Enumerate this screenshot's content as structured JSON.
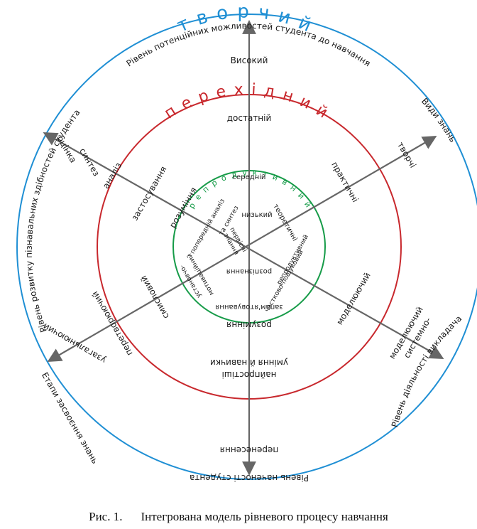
{
  "outer_ring": {
    "top_label": "Рівень потенційних можливостей студента до навчання",
    "left_label": "Рівень розвитку пізнавальних здібностей студента",
    "right_top_label": "Види знань",
    "right_bottom_label": "Рівень діяльності викладача",
    "bottom_label": "Рівень наченості студента",
    "bottom_left_label": "Етапи засвоєння знань"
  },
  "levels": {
    "creative": "т в о р ч и й",
    "transitional": "п е р е х і д н и й",
    "reproductive": "р е п р о д у к т и в н и й"
  },
  "vertical_axis": {
    "high": "Високий",
    "sufficient": "достатній",
    "middle": "середній",
    "low": "низький",
    "understanding": "розуміння",
    "simplest_skills_1": "найпростіші",
    "simplest_skills_2": "уміння й навички",
    "transfer": "перенесення"
  },
  "left_axis": {
    "evaluation": "оцінка",
    "synthesis": "синтез",
    "analysis": "аналіз",
    "application": "застосування",
    "understanding": "розуміння",
    "primary_analysis": "попередній аналіз",
    "synthesis_inner": "та синтез",
    "generalizing": "узагальнюючий",
    "transforming": "перетворюючий",
    "semantic": "смисловий",
    "installation": "установчо-",
    "motivational": "мотиваційний"
  },
  "right_axis": {
    "creative": "творчі",
    "practical": "практичні",
    "theoretical": "теоретичні",
    "first_knowledge_1": "первісні",
    "first_knowledge_2": "знання",
    "reproductive": "репродуктивний",
    "partial_search": "частково-пошуковий",
    "modeling": "моделюючий",
    "systemic": "системно-",
    "modeling_2": "моделюючий"
  },
  "inner_bottom": {
    "recognition": "розпізнання",
    "memorization": "запам'ятовування"
  },
  "caption": {
    "number": "Рис. 1.",
    "title": "Інтегрована модель рівневого процесу навчання"
  },
  "colors": {
    "outer_circle": "#1f8fd4",
    "middle_circle": "#c8282d",
    "inner_circle": "#169b48",
    "axis": "#666666"
  }
}
